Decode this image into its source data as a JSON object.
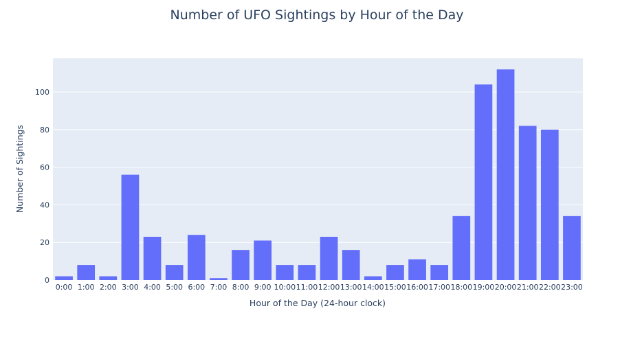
{
  "chart_data": {
    "type": "bar",
    "title": "Number of UFO Sightings by Hour of the Day",
    "xlabel": "Hour of the Day (24-hour clock)",
    "ylabel": "Number of Sightings",
    "categories": [
      "0:00",
      "1:00",
      "2:00",
      "3:00",
      "4:00",
      "5:00",
      "6:00",
      "7:00",
      "8:00",
      "9:00",
      "10:00",
      "11:00",
      "12:00",
      "13:00",
      "14:00",
      "15:00",
      "16:00",
      "17:00",
      "18:00",
      "19:00",
      "20:00",
      "21:00",
      "22:00",
      "23:00"
    ],
    "values": [
      2,
      8,
      2,
      56,
      23,
      8,
      24,
      1,
      16,
      21,
      8,
      8,
      23,
      16,
      2,
      8,
      11,
      8,
      34,
      104,
      112,
      82,
      80,
      34
    ],
    "ylim": [
      0,
      117.9
    ],
    "yticks": [
      0,
      20,
      40,
      60,
      80,
      100
    ],
    "grid": true,
    "colors": {
      "bar": "#636efa",
      "plot_bg": "#e5ecf6",
      "grid": "#ffffff",
      "text": "#2a3f5f"
    }
  }
}
